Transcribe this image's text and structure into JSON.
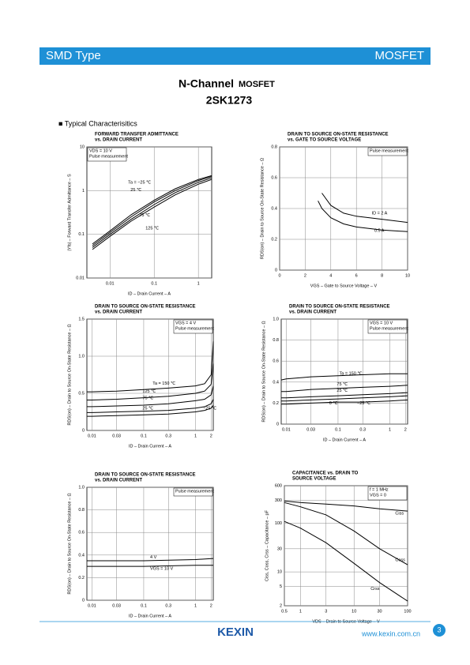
{
  "header": {
    "left": "SMD Type",
    "right": "MOSFET"
  },
  "title": {
    "line1": "N-Channel",
    "line1b": "MOSFET",
    "part": "2SK1273"
  },
  "section": "■ Typical Characterisitics",
  "footer": {
    "logo": "KEXIN",
    "url": "www.kexin.com.cn",
    "page": "3"
  },
  "chart_data": [
    {
      "type": "line",
      "title": [
        "FORWARD TRANSFER ADMITTANCE",
        "vs. DRAIN CURRENT"
      ],
      "xlabel": "ID – Drain Current – A",
      "ylabel": "|Yfs| – Forward Transfer Admittance – S",
      "xscale": "log",
      "yscale": "log",
      "xlim": [
        0.003,
        2
      ],
      "ylim": [
        0.01,
        10
      ],
      "xticks": [
        0.01,
        0.1,
        1
      ],
      "yticks": [
        0.01,
        0.1,
        1,
        10
      ],
      "grid": true,
      "annotations": [
        "VDS = 10 V",
        "Pulse measurement"
      ],
      "x": [
        0.004,
        0.01,
        0.03,
        0.1,
        0.3,
        1,
        2
      ],
      "series": [
        {
          "name": "Ta = −25 ℃",
          "color": "#000000",
          "values": [
            0.06,
            0.12,
            0.28,
            0.6,
            1.1,
            1.8,
            2.2
          ]
        },
        {
          "name": "25 ℃",
          "color": "#000000",
          "values": [
            0.055,
            0.11,
            0.25,
            0.55,
            1.0,
            1.7,
            2.1
          ]
        },
        {
          "name": "75 ℃",
          "color": "#000000",
          "values": [
            0.05,
            0.1,
            0.22,
            0.48,
            0.9,
            1.55,
            1.95
          ]
        },
        {
          "name": "125 ℃",
          "color": "#000000",
          "values": [
            0.045,
            0.09,
            0.2,
            0.42,
            0.8,
            1.4,
            1.8
          ]
        }
      ]
    },
    {
      "type": "line",
      "title": [
        "DRAIN TO SOURCE ON-STATE RESISTANCE",
        "vs. GATE TO SOURCE VOLTAGE"
      ],
      "xlabel": "VGS – Gate to Source Voltage – V",
      "ylabel": "RDS(on) – Drain to Source On-State Resistance – Ω",
      "xscale": "linear",
      "yscale": "linear",
      "xlim": [
        0,
        10
      ],
      "ylim": [
        0,
        0.8
      ],
      "xticks": [
        0,
        2,
        4,
        6,
        8,
        10
      ],
      "yticks": [
        0,
        0.2,
        0.4,
        0.6,
        0.8
      ],
      "grid": true,
      "annotations": [
        "Pulse measurement"
      ],
      "x": [
        3,
        3.3,
        4,
        5,
        6,
        8,
        10
      ],
      "series": [
        {
          "name": "ID = 2 A",
          "color": "#000000",
          "values": [
            null,
            0.5,
            0.42,
            0.37,
            0.35,
            0.33,
            0.31
          ]
        },
        {
          "name": "0.5 A",
          "color": "#000000",
          "values": [
            0.45,
            0.4,
            0.34,
            0.3,
            0.28,
            0.26,
            0.25
          ]
        }
      ]
    },
    {
      "type": "line",
      "title": [
        "DRAIN TO SOURCE ON-STATE RESISTANCE",
        "vs. DRAIN CURRENT"
      ],
      "xlabel": "ID – Drain Current – A",
      "ylabel": "RDS(on) – Drain to Source On-State Resistance – Ω",
      "xscale": "log",
      "yscale": "linear",
      "xlim": [
        0.008,
        2.2
      ],
      "ylim": [
        0,
        1.5
      ],
      "xticks": [
        0.01,
        0.03,
        0.1,
        0.3,
        1,
        2
      ],
      "yticks": [
        0,
        0.5,
        {
          "value": 1,
          "label": "1.0"
        },
        1.5
      ],
      "grid": true,
      "annotations": [
        "VGS = 4 V",
        "Pulse measurement"
      ],
      "x": [
        0.008,
        0.01,
        0.03,
        0.1,
        0.3,
        1,
        1.5,
        2,
        2.2
      ],
      "series": [
        {
          "name": "Ta = 150 ℃",
          "color": "#000000",
          "values": [
            0.52,
            0.52,
            0.53,
            0.55,
            0.57,
            0.6,
            0.63,
            0.75,
            1.2
          ]
        },
        {
          "name": "125 ℃",
          "color": "#000000",
          "values": [
            0.41,
            0.41,
            0.42,
            0.44,
            0.46,
            0.5,
            0.53,
            0.62,
            0.9
          ]
        },
        {
          "name": "75 ℃",
          "color": "#000000",
          "values": [
            0.32,
            0.32,
            0.33,
            0.34,
            0.36,
            0.4,
            0.42,
            0.48,
            0.6
          ]
        },
        {
          "name": "25 ℃",
          "color": "#000000",
          "values": [
            0.24,
            0.24,
            0.25,
            0.26,
            0.27,
            0.3,
            0.32,
            0.36,
            0.42
          ]
        },
        {
          "name": "−25 ℃",
          "color": "#000000",
          "values": [
            0.19,
            0.19,
            0.2,
            0.21,
            0.22,
            0.25,
            0.27,
            0.3,
            0.34
          ]
        }
      ]
    },
    {
      "type": "line",
      "title": [
        "DRAIN TO SOURCE ON-STATE RESISTANCE",
        "vs. DRAIN CURRENT"
      ],
      "xlabel": "ID – Drain Current – A",
      "ylabel": "RDS(on) – Drain to Source On-State Resistance – Ω",
      "xscale": "log",
      "yscale": "linear",
      "xlim": [
        0.008,
        2.2
      ],
      "ylim": [
        0,
        1
      ],
      "xticks": [
        0.01,
        0.03,
        0.1,
        0.3,
        1,
        2
      ],
      "yticks": [
        0,
        0.2,
        0.4,
        0.6,
        0.8,
        {
          "value": 1,
          "label": "1.0"
        }
      ],
      "grid": true,
      "annotations": [
        "VGS = 10 V",
        "Pulse measurement"
      ],
      "x": [
        0.008,
        0.01,
        0.03,
        0.1,
        0.3,
        1,
        2.2
      ],
      "series": [
        {
          "name": "Ta = 150 ℃",
          "color": "#000000",
          "values": [
            0.42,
            0.43,
            0.45,
            0.46,
            0.47,
            0.48,
            0.48
          ]
        },
        {
          "name": "75 ℃",
          "color": "#000000",
          "values": [
            0.31,
            0.31,
            0.33,
            0.34,
            0.35,
            0.36,
            0.37
          ]
        },
        {
          "name": "25 ℃",
          "color": "#000000",
          "values": [
            0.25,
            0.25,
            0.26,
            0.27,
            0.28,
            0.29,
            0.3
          ]
        },
        {
          "name": "0 ℃",
          "color": "#000000",
          "values": [
            0.22,
            0.22,
            0.23,
            0.24,
            0.25,
            0.26,
            0.27
          ]
        },
        {
          "name": "−25 ℃",
          "color": "#000000",
          "values": [
            0.19,
            0.19,
            0.2,
            0.21,
            0.21,
            0.22,
            0.23
          ]
        }
      ]
    },
    {
      "type": "line",
      "title": [
        "DRAIN TO SOURCE ON-STATE RESISTANCE",
        "vs. DRAIN CURRENT"
      ],
      "xlabel": "ID – Drain Current – A",
      "ylabel": "RDS(on) – Drain to Source On-State Resistance – Ω",
      "xscale": "log",
      "yscale": "linear",
      "xlim": [
        0.008,
        2.2
      ],
      "ylim": [
        0,
        1
      ],
      "xticks": [
        0.01,
        0.03,
        0.1,
        0.3,
        1,
        2
      ],
      "yticks": [
        0,
        0.2,
        0.4,
        0.6,
        0.8,
        {
          "value": 1,
          "label": "1.0"
        }
      ],
      "grid": true,
      "annotations": [
        "Pulse measurement"
      ],
      "x": [
        0.008,
        0.1,
        1,
        2.2
      ],
      "series": [
        {
          "name": "4 V",
          "color": "#000000",
          "values": [
            0.35,
            0.35,
            0.36,
            0.37
          ]
        },
        {
          "name": "VGS = 10 V",
          "color": "#000000",
          "values": [
            0.3,
            0.3,
            0.31,
            0.31
          ]
        }
      ]
    },
    {
      "type": "line",
      "title": [
        "CAPACITANCE vs. DRAIN TO",
        "SOURCE VOLTAGE"
      ],
      "xlabel": "VDS – Drain to Source Voltage – V",
      "ylabel": "Ciss, Coss, Crss – Capacitance – pF",
      "xscale": "log",
      "yscale": "log",
      "xlim": [
        0.5,
        100
      ],
      "ylim": [
        2,
        600
      ],
      "xticks": [
        0.5,
        1,
        3,
        10,
        30,
        100
      ],
      "yticks": [
        2,
        5,
        10,
        30,
        100,
        300,
        600
      ],
      "grid": true,
      "annotations": [
        "f = 1 MHz",
        "VGS = 0"
      ],
      "x": [
        0.5,
        1,
        3,
        10,
        30,
        100
      ],
      "series": [
        {
          "name": "Ciss",
          "color": "#000000",
          "values": [
            290,
            270,
            250,
            230,
            200,
            180
          ]
        },
        {
          "name": "Coss",
          "color": "#000000",
          "values": [
            270,
            220,
            150,
            70,
            30,
            14
          ]
        },
        {
          "name": "Crss",
          "color": "#000000",
          "values": [
            110,
            80,
            40,
            15,
            6,
            2.5
          ]
        }
      ]
    }
  ]
}
